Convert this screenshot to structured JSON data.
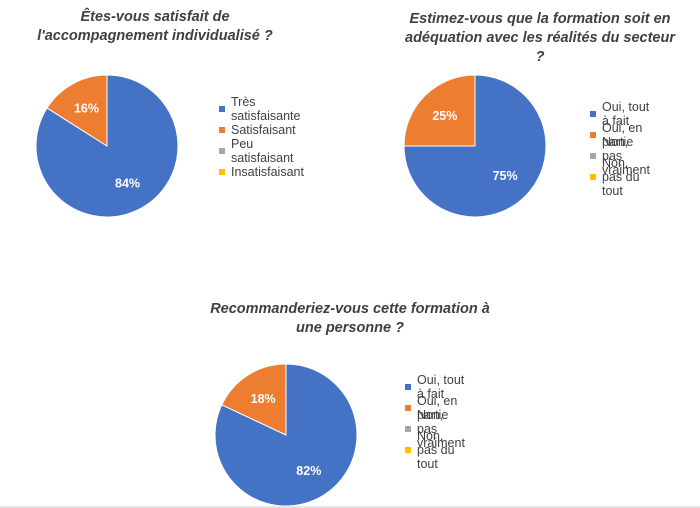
{
  "colors": {
    "series": [
      "#4472C4",
      "#ED7D31",
      "#A5A5A5",
      "#FFC000"
    ],
    "slice_border": "#ffffff",
    "text": "#404040"
  },
  "chart_data": [
    {
      "type": "pie",
      "title": "Êtes-vous satisfait de l'accompagnement individualisé ?",
      "categories": [
        "Très satisfaisante",
        "Satisfaisant",
        "Peu satisfaisant",
        "Insatisfaisant"
      ],
      "values": [
        84,
        16,
        0,
        0
      ],
      "data_labels": [
        "84%",
        "16%",
        "",
        ""
      ],
      "legend_position": "right"
    },
    {
      "type": "pie",
      "title": "Estimez-vous que la formation soit en adéquation avec les réalités du secteur ?",
      "categories": [
        "Oui, tout à fait",
        "Oui, en partie",
        "Non, pas vraiment",
        "Non, pas du tout"
      ],
      "values": [
        75,
        25,
        0,
        0
      ],
      "data_labels": [
        "75%",
        "25%",
        "",
        ""
      ],
      "legend_position": "right"
    },
    {
      "type": "pie",
      "title": "Recommanderiez-vous cette formation à une personne ?",
      "categories": [
        "Oui, tout à fait",
        "Oui, en partie",
        "Non, pas vraiment",
        "Non, pas du tout"
      ],
      "values": [
        82,
        18,
        0,
        0
      ],
      "data_labels": [
        "82%",
        "18%",
        "",
        ""
      ],
      "legend_position": "right"
    }
  ]
}
